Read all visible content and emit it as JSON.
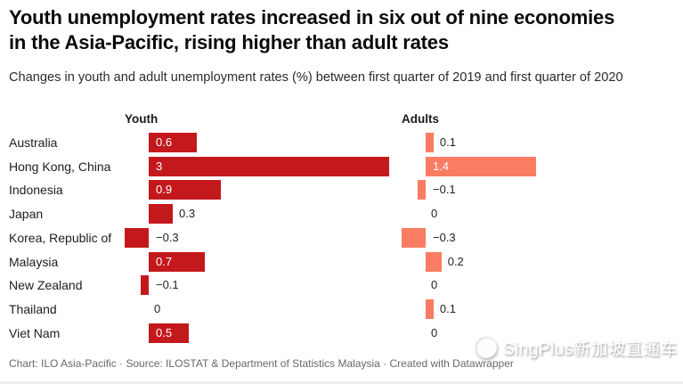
{
  "header": {
    "title": "Youth unemployment rates increased in six out of nine economies in the Asia-Pacific, rising higher than adult rates",
    "subtitle": "Changes in youth and adult unemployment rates (%) between first quarter of 2019 and first quarter of 2020"
  },
  "chart_data": {
    "type": "bar",
    "layout": "horizontal-split-bars, two value columns, value labels on bars, no axis/gridlines",
    "categories": [
      "Australia",
      "Hong Kong, China",
      "Indonesia",
      "Japan",
      "Korea, Republic of",
      "Malaysia",
      "New Zealand",
      "Thailand",
      "Viet Nam"
    ],
    "series": [
      {
        "name": "Youth",
        "values": [
          0.6,
          3,
          0.9,
          0.3,
          -0.3,
          0.7,
          -0.1,
          0,
          0.5
        ],
        "labels": [
          "0.6",
          "3",
          "0.9",
          "0.3",
          "−0.3",
          "0.7",
          "−0.1",
          "0",
          "0.5"
        ],
        "color": "#c3191d"
      },
      {
        "name": "Adults",
        "values": [
          0.1,
          1.4,
          -0.1,
          0,
          -0.3,
          0.2,
          0,
          0.1,
          0
        ],
        "labels": [
          "0.1",
          "1.4",
          "−0.1",
          "0",
          "−0.3",
          "0.2",
          "0",
          "0.1",
          "0"
        ],
        "color": "#f97c63"
      }
    ],
    "value_label_inside_color": "#ffffff",
    "value_label_outside_color": "#222222",
    "unit": "%"
  },
  "footer": {
    "text": "Chart: ILO Asia-Pacific · Source: ILOSTAT & Department of Statistics Malaysia · Created with Datawrapper"
  },
  "watermark": {
    "text": "SingPlus新加坡直通车"
  }
}
